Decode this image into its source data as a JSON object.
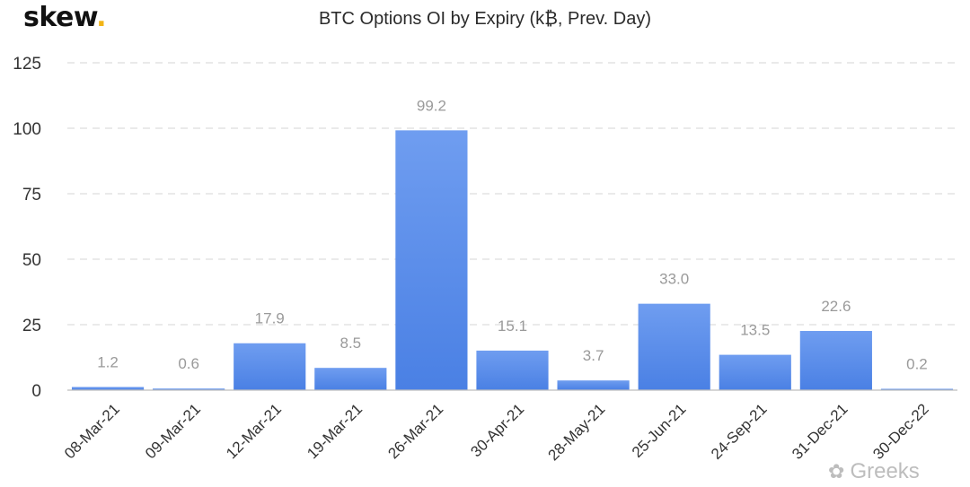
{
  "brand": {
    "name": "skew",
    "dot": ".",
    "dot_color": "#f2b517"
  },
  "watermark": {
    "icon": "wechat-icon",
    "text": "Greeks"
  },
  "colors": {
    "bar": "#4f86e8",
    "bar_top": "#6f9df0",
    "grid": "#dddddd",
    "label": "#9a9a9a",
    "axis_text": "#333333"
  },
  "chart_data": {
    "type": "bar",
    "title": "BTC Options OI by Expiry (k₿, Prev. Day)",
    "xlabel": "",
    "ylabel": "",
    "ylim": [
      0,
      125
    ],
    "yticks": [
      0,
      25,
      50,
      75,
      100,
      125
    ],
    "grid": true,
    "categories": [
      "08-Mar-21",
      "09-Mar-21",
      "12-Mar-21",
      "19-Mar-21",
      "26-Mar-21",
      "30-Apr-21",
      "28-May-21",
      "25-Jun-21",
      "24-Sep-21",
      "31-Dec-21",
      "30-Dec-22"
    ],
    "values": [
      1.2,
      0.6,
      17.9,
      8.5,
      99.2,
      15.1,
      3.7,
      33.0,
      13.5,
      22.6,
      0.2
    ],
    "labels": [
      "1.2",
      "0.6",
      "17.9",
      "8.5",
      "99.2",
      "15.1",
      "3.7",
      "33.0",
      "13.5",
      "22.6",
      "0.2"
    ]
  }
}
